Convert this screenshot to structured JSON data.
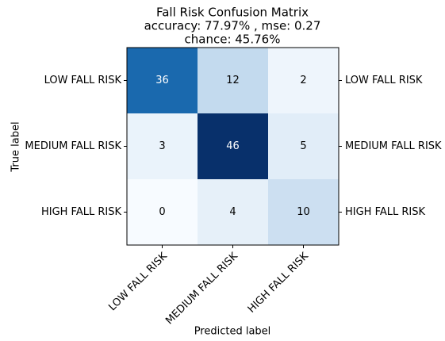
{
  "chart_data": {
    "type": "heatmap",
    "title": "Fall Risk Confusion Matrix",
    "subtitle": [
      "accuracy: 77.97% , mse: 0.27",
      "chance: 45.76%"
    ],
    "x_label": "Predicted label",
    "y_label": "True label",
    "x_categories": [
      "LOW FALL RISK",
      "MEDIUM FALL RISK",
      "HIGH FALL RISK"
    ],
    "y_categories": [
      "LOW FALL RISK",
      "MEDIUM FALL RISK",
      "HIGH FALL RISK"
    ],
    "values": [
      [
        36,
        12,
        2
      ],
      [
        3,
        46,
        5
      ],
      [
        0,
        4,
        10
      ]
    ],
    "colormap": "Blues"
  }
}
